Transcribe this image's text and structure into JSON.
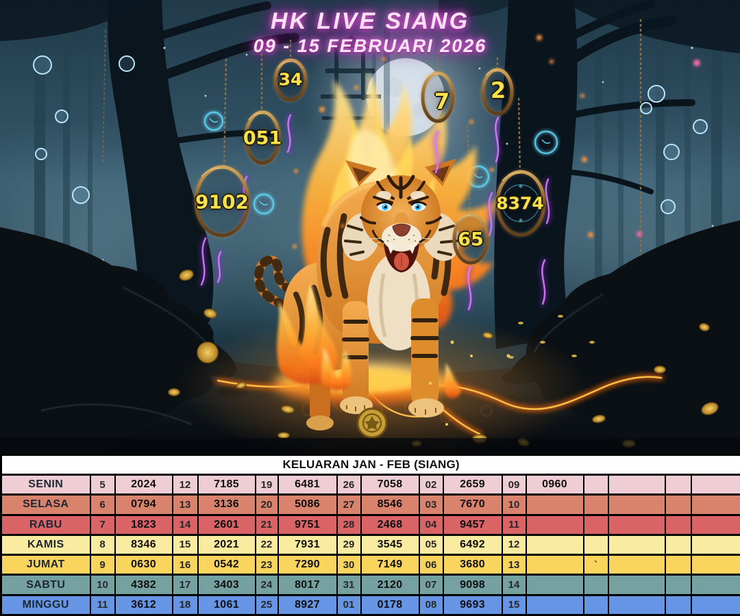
{
  "title": {
    "line1": "HK LIVE SIANG",
    "line2": "09 - 15 FEBRUARI 2026"
  },
  "scene": {
    "rings": [
      {
        "value": "34"
      },
      {
        "value": "051"
      },
      {
        "value": "9102"
      },
      {
        "value": "7"
      },
      {
        "value": "2"
      },
      {
        "value": "8374"
      },
      {
        "value": "65"
      }
    ]
  },
  "colors": {
    "ring_number": "#f8e24b",
    "title_glow": "#e84fd8",
    "table_border": "#000000"
  },
  "table": {
    "header": "KELUARAN JAN - FEB (SIANG)",
    "rows": [
      {
        "day": "SENIN",
        "color": "#eeced4",
        "cells": [
          "5",
          "2024",
          "12",
          "7185",
          "19",
          "6481",
          "26",
          "7058",
          "02",
          "2659",
          "09",
          "0960",
          "",
          "",
          "",
          ""
        ]
      },
      {
        "day": "SELASA",
        "color": "#d9836c",
        "cells": [
          "6",
          "0794",
          "13",
          "3136",
          "20",
          "5086",
          "27",
          "8546",
          "03",
          "7670",
          "10",
          "",
          "",
          "",
          "",
          ""
        ]
      },
      {
        "day": "RABU",
        "color": "#da6365",
        "cells": [
          "7",
          "1823",
          "14",
          "2601",
          "21",
          "9751",
          "28",
          "2468",
          "04",
          "9457",
          "11",
          "",
          "",
          "",
          "",
          ""
        ]
      },
      {
        "day": "KAMIS",
        "color": "#f9eb9f",
        "cells": [
          "8",
          "8346",
          "15",
          "2021",
          "22",
          "7931",
          "29",
          "3545",
          "05",
          "6492",
          "12",
          "",
          "",
          "",
          "",
          ""
        ]
      },
      {
        "day": "JUMAT",
        "color": "#f9d55e",
        "cells": [
          "9",
          "0630",
          "16",
          "0542",
          "23",
          "7290",
          "30",
          "7149",
          "06",
          "3680",
          "13",
          "",
          "`",
          "",
          "",
          ""
        ]
      },
      {
        "day": "SABTU",
        "color": "#75a2a0",
        "cells": [
          "10",
          "4382",
          "17",
          "3403",
          "24",
          "8017",
          "31",
          "2120",
          "07",
          "9098",
          "14",
          "",
          "",
          "",
          "",
          ""
        ]
      },
      {
        "day": "MINGGU",
        "color": "#6795e6",
        "cells": [
          "11",
          "3612",
          "18",
          "1061",
          "25",
          "8927",
          "01",
          "0178",
          "08",
          "9693",
          "15",
          "",
          "",
          "",
          "",
          ""
        ]
      }
    ]
  }
}
